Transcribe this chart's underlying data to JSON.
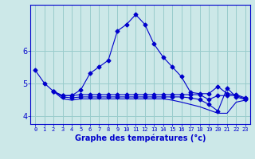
{
  "xlabel": "Graphe des températures (°c)",
  "background_color": "#cce8e8",
  "line_color": "#0000cc",
  "grid_color": "#99cccc",
  "x_ticks": [
    0,
    1,
    2,
    3,
    4,
    5,
    6,
    7,
    8,
    9,
    10,
    11,
    12,
    13,
    14,
    15,
    16,
    17,
    18,
    19,
    20,
    21,
    22,
    23
  ],
  "y_ticks": [
    4,
    5,
    6
  ],
  "ylim": [
    3.75,
    7.4
  ],
  "xlim": [
    -0.5,
    23.5
  ],
  "series": [
    {
      "x": [
        0,
        1,
        2,
        3,
        4,
        5,
        6,
        7,
        8,
        9,
        10,
        11,
        12,
        13,
        14,
        15,
        16,
        17,
        18,
        19,
        20,
        21,
        22,
        23
      ],
      "y": [
        5.4,
        5.0,
        4.75,
        4.62,
        4.62,
        4.8,
        5.3,
        5.5,
        5.7,
        6.6,
        6.8,
        7.1,
        6.8,
        6.2,
        5.8,
        5.5,
        5.2,
        4.72,
        4.68,
        4.68,
        4.9,
        4.68,
        4.65,
        4.55
      ],
      "marker": "D",
      "markersize": 2.5
    },
    {
      "x": [
        2,
        3,
        4,
        5,
        6,
        7,
        8,
        9,
        10,
        11,
        12,
        13,
        14,
        15,
        16,
        17,
        18,
        19,
        20,
        21,
        22,
        23
      ],
      "y": [
        4.75,
        4.62,
        4.62,
        4.65,
        4.65,
        4.65,
        4.65,
        4.65,
        4.65,
        4.65,
        4.65,
        4.65,
        4.65,
        4.65,
        4.65,
        4.65,
        4.65,
        4.5,
        4.62,
        4.62,
        4.62,
        4.52
      ],
      "marker": "D",
      "markersize": 2.5
    },
    {
      "x": [
        2,
        3,
        4,
        5,
        6,
        7,
        8,
        9,
        10,
        11,
        12,
        13,
        14,
        15,
        16,
        17,
        18,
        19,
        20,
        21,
        22,
        23
      ],
      "y": [
        4.75,
        4.58,
        4.55,
        4.58,
        4.58,
        4.58,
        4.58,
        4.58,
        4.58,
        4.58,
        4.58,
        4.58,
        4.58,
        4.58,
        4.58,
        4.55,
        4.5,
        4.35,
        4.15,
        4.85,
        4.58,
        4.5
      ],
      "marker": "D",
      "markersize": 2.5
    },
    {
      "x": [
        2,
        3,
        4,
        5,
        6,
        7,
        8,
        9,
        10,
        11,
        12,
        13,
        14,
        15,
        16,
        17,
        18,
        19,
        20,
        21,
        22,
        23
      ],
      "y": [
        4.75,
        4.52,
        4.48,
        4.52,
        4.52,
        4.52,
        4.52,
        4.52,
        4.52,
        4.52,
        4.52,
        4.52,
        4.52,
        4.48,
        4.42,
        4.35,
        4.28,
        4.18,
        4.08,
        4.08,
        4.42,
        4.48
      ],
      "marker": null,
      "markersize": 0
    }
  ]
}
